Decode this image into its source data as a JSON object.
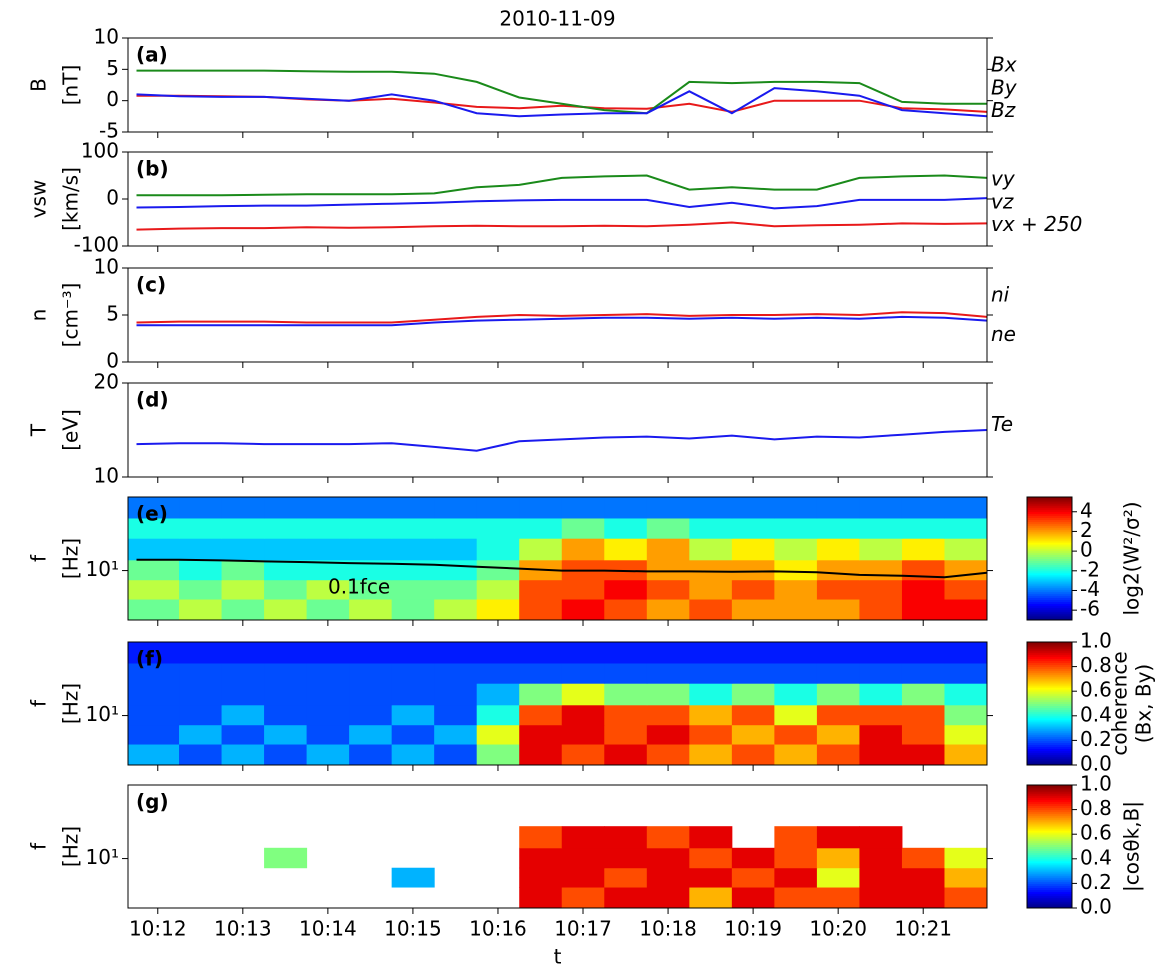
{
  "chart_data": [
    {
      "type": "line",
      "title": "2010-11-09",
      "label": "(a)",
      "ylabel": [
        "B",
        "[nT]"
      ],
      "xlim": [
        11.65,
        21.75
      ],
      "ylim": [
        -5,
        10
      ],
      "yticks": [
        -5,
        0,
        5,
        10
      ],
      "x": [
        11.75,
        12.25,
        12.75,
        13.25,
        13.75,
        14.25,
        14.75,
        15.25,
        15.75,
        16.25,
        16.75,
        17.25,
        17.75,
        18.25,
        18.75,
        19.25,
        19.75,
        20.25,
        20.75,
        21.25,
        21.75
      ],
      "series": [
        {
          "name": "Bx",
          "color": "#e8191a",
          "values": [
            0.8,
            0.8,
            0.7,
            0.6,
            0.2,
            0,
            0.3,
            -0.3,
            -1,
            -1.2,
            -0.8,
            -1.2,
            -1.3,
            -0.5,
            -1.8,
            0,
            0,
            0,
            -1.2,
            -1.4,
            -1.8
          ]
        },
        {
          "name": "By",
          "color": "#1a8a1a",
          "values": [
            4.8,
            4.8,
            4.8,
            4.8,
            4.7,
            4.6,
            4.6,
            4.3,
            3,
            0.5,
            -0.5,
            -1.5,
            -2,
            3,
            2.8,
            3,
            3,
            2.8,
            -0.2,
            -0.5,
            -0.5
          ]
        },
        {
          "name": "Bz",
          "color": "#1a1aee",
          "values": [
            1,
            0.7,
            0.6,
            0.6,
            0.3,
            0,
            1,
            0,
            -2,
            -2.5,
            -2.2,
            -2,
            -2,
            1.5,
            -2,
            2,
            1.5,
            0.8,
            -1.5,
            -2,
            -2.5
          ]
        }
      ]
    },
    {
      "type": "line",
      "label": "(b)",
      "ylabel": [
        "vsw",
        "[km/s]"
      ],
      "xlim": [
        11.65,
        21.75
      ],
      "ylim": [
        -100,
        100
      ],
      "yticks": [
        -100,
        0,
        100
      ],
      "x": [
        11.75,
        12.25,
        12.75,
        13.25,
        13.75,
        14.25,
        14.75,
        15.25,
        15.75,
        16.25,
        16.75,
        17.25,
        17.75,
        18.25,
        18.75,
        19.25,
        19.75,
        20.25,
        20.75,
        21.25,
        21.75
      ],
      "series": [
        {
          "name": "vy",
          "color": "#1a8a1a",
          "values": [
            8,
            8,
            8,
            9,
            10,
            10,
            10,
            12,
            25,
            30,
            45,
            48,
            50,
            20,
            25,
            20,
            20,
            45,
            48,
            50,
            45
          ]
        },
        {
          "name": "vz",
          "color": "#1a1aee",
          "values": [
            -18,
            -17,
            -15,
            -14,
            -14,
            -12,
            -10,
            -8,
            -5,
            -3,
            -2,
            -2,
            -2,
            -17,
            -8,
            -20,
            -15,
            -2,
            -2,
            -2,
            2
          ]
        },
        {
          "name": "vx + 250",
          "color": "#e8191a",
          "values": [
            -65,
            -63,
            -62,
            -62,
            -60,
            -61,
            -60,
            -58,
            -57,
            -58,
            -58,
            -57,
            -58,
            -55,
            -50,
            -58,
            -56,
            -55,
            -52,
            -53,
            -52
          ]
        }
      ]
    },
    {
      "type": "line",
      "label": "(c)",
      "ylabel": [
        "n",
        "[cm⁻³]"
      ],
      "xlim": [
        11.65,
        21.75
      ],
      "ylim": [
        0,
        10
      ],
      "yticks": [
        0,
        5,
        10
      ],
      "x": [
        11.75,
        12.25,
        12.75,
        13.25,
        13.75,
        14.25,
        14.75,
        15.25,
        15.75,
        16.25,
        16.75,
        17.25,
        17.75,
        18.25,
        18.75,
        19.25,
        19.75,
        20.25,
        20.75,
        21.25,
        21.75
      ],
      "series": [
        {
          "name": "ni",
          "color": "#e8191a",
          "values": [
            4.2,
            4.3,
            4.3,
            4.3,
            4.2,
            4.2,
            4.2,
            4.5,
            4.8,
            5,
            4.9,
            5,
            5.1,
            4.9,
            5,
            5,
            5.1,
            5,
            5.3,
            5.2,
            4.8
          ]
        },
        {
          "name": "ne",
          "color": "#1a1aee",
          "values": [
            3.9,
            3.9,
            3.9,
            3.9,
            3.9,
            3.9,
            3.9,
            4.2,
            4.4,
            4.5,
            4.6,
            4.7,
            4.7,
            4.6,
            4.7,
            4.6,
            4.7,
            4.6,
            4.8,
            4.7,
            4.4
          ]
        }
      ]
    },
    {
      "type": "line",
      "label": "(d)",
      "ylabel": [
        "T",
        "[eV]"
      ],
      "xlim": [
        11.65,
        21.75
      ],
      "ylim": [
        10,
        20
      ],
      "yticks": [
        10,
        20
      ],
      "x": [
        11.75,
        12.25,
        12.75,
        13.25,
        13.75,
        14.25,
        14.75,
        15.25,
        15.75,
        16.25,
        16.75,
        17.25,
        17.75,
        18.25,
        18.75,
        19.25,
        19.75,
        20.25,
        20.75,
        21.25,
        21.75
      ],
      "series": [
        {
          "name": "Te",
          "color": "#1a1aee",
          "values": [
            13.5,
            13.6,
            13.6,
            13.5,
            13.5,
            13.5,
            13.6,
            13.2,
            12.8,
            13.8,
            14,
            14.2,
            14.3,
            14.1,
            14.4,
            14,
            14.3,
            14.2,
            14.5,
            14.8,
            15
          ]
        }
      ]
    },
    {
      "type": "heatmap",
      "label": "(e)",
      "ylabel": [
        "f",
        "[Hz]"
      ],
      "log": true,
      "xlim": [
        11.65,
        21.75
      ],
      "ylim": [
        3,
        60
      ],
      "yticks": [
        {
          "value": 10,
          "label": "10¹"
        }
      ],
      "xbins": [
        11.65,
        12.25,
        12.75,
        13.25,
        13.75,
        14.25,
        14.75,
        15.25,
        15.75,
        16.25,
        16.75,
        17.25,
        17.75,
        18.25,
        18.75,
        19.25,
        19.75,
        20.25,
        20.75,
        21.25,
        21.75
      ],
      "ybins": [
        3,
        5,
        8,
        13,
        22,
        36,
        60
      ],
      "z": [
        [
          -1,
          0,
          -1,
          0,
          -1,
          0,
          -1,
          0,
          1,
          3,
          4,
          3,
          2,
          3,
          2,
          2,
          2,
          3,
          4,
          4
        ],
        [
          0,
          -1,
          0,
          -1,
          0,
          -1,
          -1,
          -1,
          0,
          3,
          3,
          4,
          3,
          2,
          3,
          2,
          3,
          3,
          4,
          3
        ],
        [
          -1,
          -2,
          -1,
          -2,
          -2,
          -2,
          -2,
          -2,
          -1,
          2,
          3,
          3,
          2,
          2,
          2,
          1,
          2,
          2,
          3,
          2
        ],
        [
          -3,
          -3,
          -3,
          -3,
          -3,
          -3,
          -3,
          -3,
          -2,
          0,
          2,
          1,
          2,
          0,
          1,
          0,
          1,
          0,
          1,
          0
        ],
        [
          -2,
          -2,
          -2,
          -2,
          -2,
          -2,
          -2,
          -2,
          -2,
          -2,
          -1,
          -2,
          -1,
          -2,
          -2,
          -2,
          -2,
          -2,
          -2,
          -2
        ],
        [
          -4,
          -4,
          -4,
          -4,
          -4,
          -4,
          -4,
          -4,
          -4,
          -4,
          -4,
          -4,
          -4,
          -4,
          -4,
          -4,
          -4,
          -4,
          -4,
          -4
        ]
      ],
      "x": [
        11.75,
        12.25,
        12.75,
        13.25,
        13.75,
        14.25,
        14.75,
        15.25,
        15.75,
        16.25,
        16.75,
        17.25,
        17.75,
        18.25,
        18.75,
        19.25,
        19.75,
        20.25,
        20.75,
        21.25,
        21.75
      ],
      "series": [
        {
          "color": "#000000",
          "values": [
            13,
            13,
            12.8,
            12.5,
            12.3,
            12,
            11.8,
            11.5,
            11,
            10.5,
            10,
            10,
            9.8,
            9.8,
            9.7,
            9.8,
            9.6,
            9,
            8.8,
            8.5,
            9.5
          ]
        }
      ],
      "annotation": "0.1fce",
      "colorbar": {
        "label": [
          "log2(W²/σ²)"
        ],
        "lim": [
          -7,
          5.5
        ],
        "ticks": [
          -6,
          -4,
          -2,
          0,
          2,
          4
        ]
      }
    },
    {
      "type": "heatmap",
      "label": "(f)",
      "ylabel": [
        "f",
        "[Hz]"
      ],
      "log": true,
      "xlim": [
        11.65,
        21.75
      ],
      "ylim": [
        3,
        60
      ],
      "yticks": [
        {
          "value": 10,
          "label": "10¹"
        }
      ],
      "xbins": [
        11.65,
        12.25,
        12.75,
        13.25,
        13.75,
        14.25,
        14.75,
        15.25,
        15.75,
        16.25,
        16.75,
        17.25,
        17.75,
        18.25,
        18.75,
        19.25,
        19.75,
        20.25,
        20.75,
        21.25,
        21.75
      ],
      "ybins": [
        3,
        5,
        8,
        13,
        22,
        36,
        60
      ],
      "z": [
        [
          0.3,
          0.2,
          0.3,
          0.2,
          0.3,
          0.2,
          0.3,
          0.2,
          0.5,
          0.9,
          0.8,
          0.9,
          0.8,
          0.7,
          0.8,
          0.7,
          0.8,
          0.9,
          0.9,
          0.7
        ],
        [
          0.2,
          0.3,
          0.2,
          0.3,
          0.2,
          0.3,
          0.2,
          0.3,
          0.6,
          0.9,
          0.9,
          0.8,
          0.9,
          0.8,
          0.7,
          0.8,
          0.7,
          0.9,
          0.8,
          0.6
        ],
        [
          0.2,
          0.2,
          0.3,
          0.2,
          0.2,
          0.2,
          0.3,
          0.2,
          0.4,
          0.8,
          0.9,
          0.8,
          0.8,
          0.7,
          0.8,
          0.6,
          0.8,
          0.8,
          0.8,
          0.5
        ],
        [
          0.2,
          0.2,
          0.2,
          0.2,
          0.2,
          0.2,
          0.2,
          0.2,
          0.3,
          0.5,
          0.6,
          0.5,
          0.5,
          0.4,
          0.5,
          0.4,
          0.5,
          0.4,
          0.5,
          0.4
        ],
        [
          0.2,
          0.2,
          0.2,
          0.2,
          0.2,
          0.2,
          0.2,
          0.2,
          0.2,
          0.2,
          0.2,
          0.2,
          0.2,
          0.2,
          0.2,
          0.2,
          0.2,
          0.2,
          0.2,
          0.2
        ],
        [
          0.15,
          0.15,
          0.15,
          0.15,
          0.15,
          0.15,
          0.15,
          0.15,
          0.15,
          0.15,
          0.15,
          0.15,
          0.15,
          0.15,
          0.15,
          0.15,
          0.15,
          0.15,
          0.15,
          0.15
        ]
      ],
      "colorbar": {
        "label": [
          "coherence",
          "(Bx, By)"
        ],
        "lim": [
          0,
          1
        ],
        "ticks": [
          {
            "value": 0,
            "label": "0.0"
          },
          {
            "value": 0.2,
            "label": "0.2"
          },
          {
            "value": 0.4,
            "label": "0.4"
          },
          {
            "value": 0.6,
            "label": "0.6"
          },
          {
            "value": 0.8,
            "label": "0.8"
          },
          {
            "value": 1,
            "label": "1.0"
          }
        ]
      }
    },
    {
      "type": "heatmap",
      "label": "(g)",
      "ylabel": [
        "f",
        "[Hz]"
      ],
      "log": true,
      "xlim": [
        11.65,
        21.75
      ],
      "ylim": [
        3,
        60
      ],
      "yticks": [
        {
          "value": 10,
          "label": "10¹"
        }
      ],
      "xticks": [
        {
          "value": 12,
          "label": "10:12"
        },
        {
          "value": 13,
          "label": "10:13"
        },
        {
          "value": 14,
          "label": "10:14"
        },
        {
          "value": 15,
          "label": "10:15"
        },
        {
          "value": 16,
          "label": "10:16"
        },
        {
          "value": 17,
          "label": "10:17"
        },
        {
          "value": 18,
          "label": "10:18"
        },
        {
          "value": 19,
          "label": "10:19"
        },
        {
          "value": 20,
          "label": "10:20"
        },
        {
          "value": 21,
          "label": "10:21"
        }
      ],
      "xlabel": "t",
      "xbins": [
        11.65,
        12.25,
        12.75,
        13.25,
        13.75,
        14.25,
        14.75,
        15.25,
        15.75,
        16.25,
        16.75,
        17.25,
        17.75,
        18.25,
        18.75,
        19.25,
        19.75,
        20.25,
        20.75,
        21.25,
        21.75
      ],
      "ybins": [
        3,
        5,
        8,
        13,
        22,
        36,
        60
      ],
      "z": [
        [
          null,
          null,
          null,
          null,
          null,
          null,
          null,
          null,
          null,
          0.9,
          0.8,
          0.9,
          0.9,
          0.7,
          0.9,
          0.8,
          0.8,
          0.9,
          0.9,
          0.8
        ],
        [
          null,
          null,
          null,
          null,
          null,
          null,
          0.3,
          null,
          null,
          0.9,
          0.9,
          0.8,
          0.9,
          0.9,
          0.8,
          0.9,
          0.6,
          0.9,
          0.9,
          0.7
        ],
        [
          null,
          null,
          null,
          0.5,
          null,
          null,
          null,
          null,
          null,
          0.9,
          0.9,
          0.9,
          0.9,
          0.8,
          0.9,
          0.8,
          0.7,
          0.9,
          0.8,
          0.6
        ],
        [
          null,
          null,
          null,
          null,
          null,
          null,
          null,
          null,
          null,
          0.8,
          0.9,
          0.9,
          0.8,
          0.9,
          null,
          0.8,
          0.9,
          0.9,
          null,
          null
        ],
        [
          null,
          null,
          null,
          null,
          null,
          null,
          null,
          null,
          null,
          null,
          null,
          null,
          null,
          null,
          null,
          null,
          null,
          null,
          null,
          null
        ],
        [
          null,
          null,
          null,
          null,
          null,
          null,
          null,
          null,
          null,
          null,
          null,
          null,
          null,
          null,
          null,
          null,
          null,
          null,
          null,
          null
        ]
      ],
      "colorbar": {
        "label": [
          "|cosθk,B|"
        ],
        "lim": [
          0,
          1
        ],
        "ticks": [
          {
            "value": 0,
            "label": "0.0"
          },
          {
            "value": 0.2,
            "label": "0.2"
          },
          {
            "value": 0.4,
            "label": "0.4"
          },
          {
            "value": 0.6,
            "label": "0.6"
          },
          {
            "value": 0.8,
            "label": "0.8"
          },
          {
            "value": 1,
            "label": "1.0"
          }
        ]
      }
    }
  ]
}
